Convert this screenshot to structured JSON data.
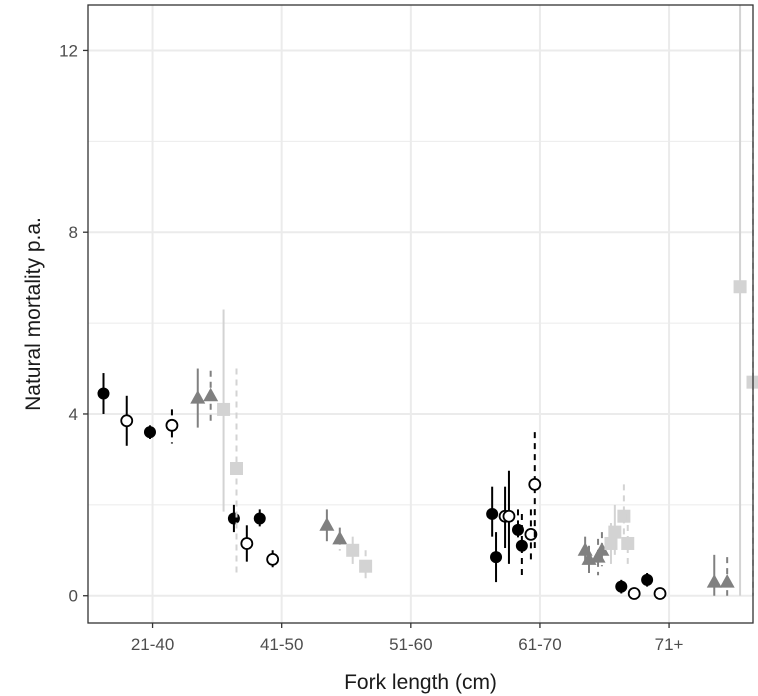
{
  "chart_data": {
    "type": "scatter",
    "title": "",
    "xlabel": "Fork length (cm)",
    "ylabel": "Natural mortality p.a.",
    "categories": [
      "21-40",
      "41-50",
      "51-60",
      "61-70",
      "71+"
    ],
    "ylim": [
      -0.6,
      13
    ],
    "yticks": [
      0,
      4,
      8,
      12
    ],
    "grid": true,
    "legend": "none",
    "colors": {
      "black": "#000000",
      "dark_grey": "#808080",
      "light_grey": "#d3d3d3",
      "grid": "#ebebeb",
      "panel_border": "#333333"
    },
    "series": [
      {
        "color": "black",
        "marker": "filled-circle",
        "line": "solid",
        "points": [
          {
            "x": 0.62,
            "y": 4.45,
            "lo": 4.0,
            "hi": 4.9
          },
          {
            "x": 0.98,
            "y": 3.6,
            "lo": 3.45,
            "hi": 3.75
          },
          {
            "x": 1.63,
            "y": 1.7,
            "lo": 1.4,
            "hi": 2.0
          },
          {
            "x": 3.63,
            "y": 1.8,
            "lo": 1.3,
            "hi": 2.4
          },
          {
            "x": 3.66,
            "y": 0.85,
            "lo": 0.3,
            "hi": 1.4
          },
          {
            "x": 4.63,
            "y": 0.2,
            "lo": 0.05,
            "hi": 0.35
          }
        ]
      },
      {
        "color": "black",
        "marker": "filled-circle",
        "line": "dashed",
        "points": [
          {
            "x": 1.83,
            "y": 1.7,
            "lo": 1.5,
            "hi": 1.9
          },
          {
            "x": 3.83,
            "y": 1.45,
            "lo": 1.0,
            "hi": 1.9
          },
          {
            "x": 3.86,
            "y": 1.1,
            "lo": 0.4,
            "hi": 1.8
          },
          {
            "x": 4.83,
            "y": 0.35,
            "lo": 0.2,
            "hi": 0.5
          }
        ]
      },
      {
        "color": "black",
        "marker": "open-circle",
        "line": "solid",
        "points": [
          {
            "x": 0.8,
            "y": 3.85,
            "lo": 3.3,
            "hi": 4.4
          },
          {
            "x": 1.73,
            "y": 1.15,
            "lo": 0.75,
            "hi": 1.55
          },
          {
            "x": 3.73,
            "y": 1.75,
            "lo": 1.05,
            "hi": 2.4
          },
          {
            "x": 3.76,
            "y": 1.75,
            "lo": 0.7,
            "hi": 2.75
          },
          {
            "x": 4.73,
            "y": 0.05,
            "lo": 0.05,
            "hi": 0.05
          }
        ]
      },
      {
        "color": "black",
        "marker": "open-circle",
        "line": "dashed",
        "points": [
          {
            "x": 1.15,
            "y": 3.75,
            "lo": 3.35,
            "hi": 4.1
          },
          {
            "x": 1.93,
            "y": 0.8,
            "lo": 0.6,
            "hi": 1.0
          },
          {
            "x": 3.93,
            "y": 1.35,
            "lo": 0.8,
            "hi": 1.9
          },
          {
            "x": 3.96,
            "y": 2.45,
            "lo": 1.05,
            "hi": 3.6
          },
          {
            "x": 4.93,
            "y": 0.05,
            "lo": 0.05,
            "hi": 0.05
          }
        ]
      },
      {
        "color": "dark_grey",
        "marker": "triangle",
        "line": "solid",
        "points": [
          {
            "x": 1.35,
            "y": 4.35,
            "lo": 3.7,
            "hi": 5.0
          },
          {
            "x": 2.35,
            "y": 1.55,
            "lo": 1.2,
            "hi": 1.9
          },
          {
            "x": 4.35,
            "y": 1.0,
            "lo": 0.7,
            "hi": 1.3
          },
          {
            "x": 4.38,
            "y": 0.8,
            "lo": 0.5,
            "hi": 1.1
          },
          {
            "x": 5.35,
            "y": 0.3,
            "lo": 0.0,
            "hi": 0.9
          }
        ]
      },
      {
        "color": "dark_grey",
        "marker": "triangle",
        "line": "dashed",
        "points": [
          {
            "x": 1.45,
            "y": 4.4,
            "lo": 3.8,
            "hi": 4.95
          },
          {
            "x": 2.45,
            "y": 1.25,
            "lo": 1.0,
            "hi": 1.5
          },
          {
            "x": 4.45,
            "y": 0.85,
            "lo": 0.45,
            "hi": 1.25
          },
          {
            "x": 4.48,
            "y": 1.0,
            "lo": 0.65,
            "hi": 1.4
          },
          {
            "x": 5.45,
            "y": 0.3,
            "lo": 0.0,
            "hi": 0.85
          }
        ]
      },
      {
        "color": "light_grey",
        "marker": "square",
        "line": "solid",
        "points": [
          {
            "x": 1.55,
            "y": 4.1,
            "lo": 1.85,
            "hi": 6.3
          },
          {
            "x": 2.55,
            "y": 1.0,
            "lo": 0.7,
            "hi": 1.3
          },
          {
            "x": 4.55,
            "y": 1.15,
            "lo": 0.7,
            "hi": 1.6
          },
          {
            "x": 4.58,
            "y": 1.4,
            "lo": 0.9,
            "hi": 2.0
          },
          {
            "x": 5.55,
            "y": 6.8,
            "lo": 0.0,
            "hi": 13.0
          }
        ]
      },
      {
        "color": "light_grey",
        "marker": "square",
        "line": "dashed",
        "points": [
          {
            "x": 1.65,
            "y": 2.8,
            "lo": 0.5,
            "hi": 5.0
          },
          {
            "x": 2.65,
            "y": 0.65,
            "lo": 0.3,
            "hi": 1.0
          },
          {
            "x": 4.65,
            "y": 1.75,
            "lo": 1.0,
            "hi": 2.45
          },
          {
            "x": 4.68,
            "y": 1.15,
            "lo": 0.7,
            "hi": 1.8
          },
          {
            "x": 5.65,
            "y": 4.7,
            "lo": 0.0,
            "hi": 11.2
          }
        ]
      }
    ]
  }
}
